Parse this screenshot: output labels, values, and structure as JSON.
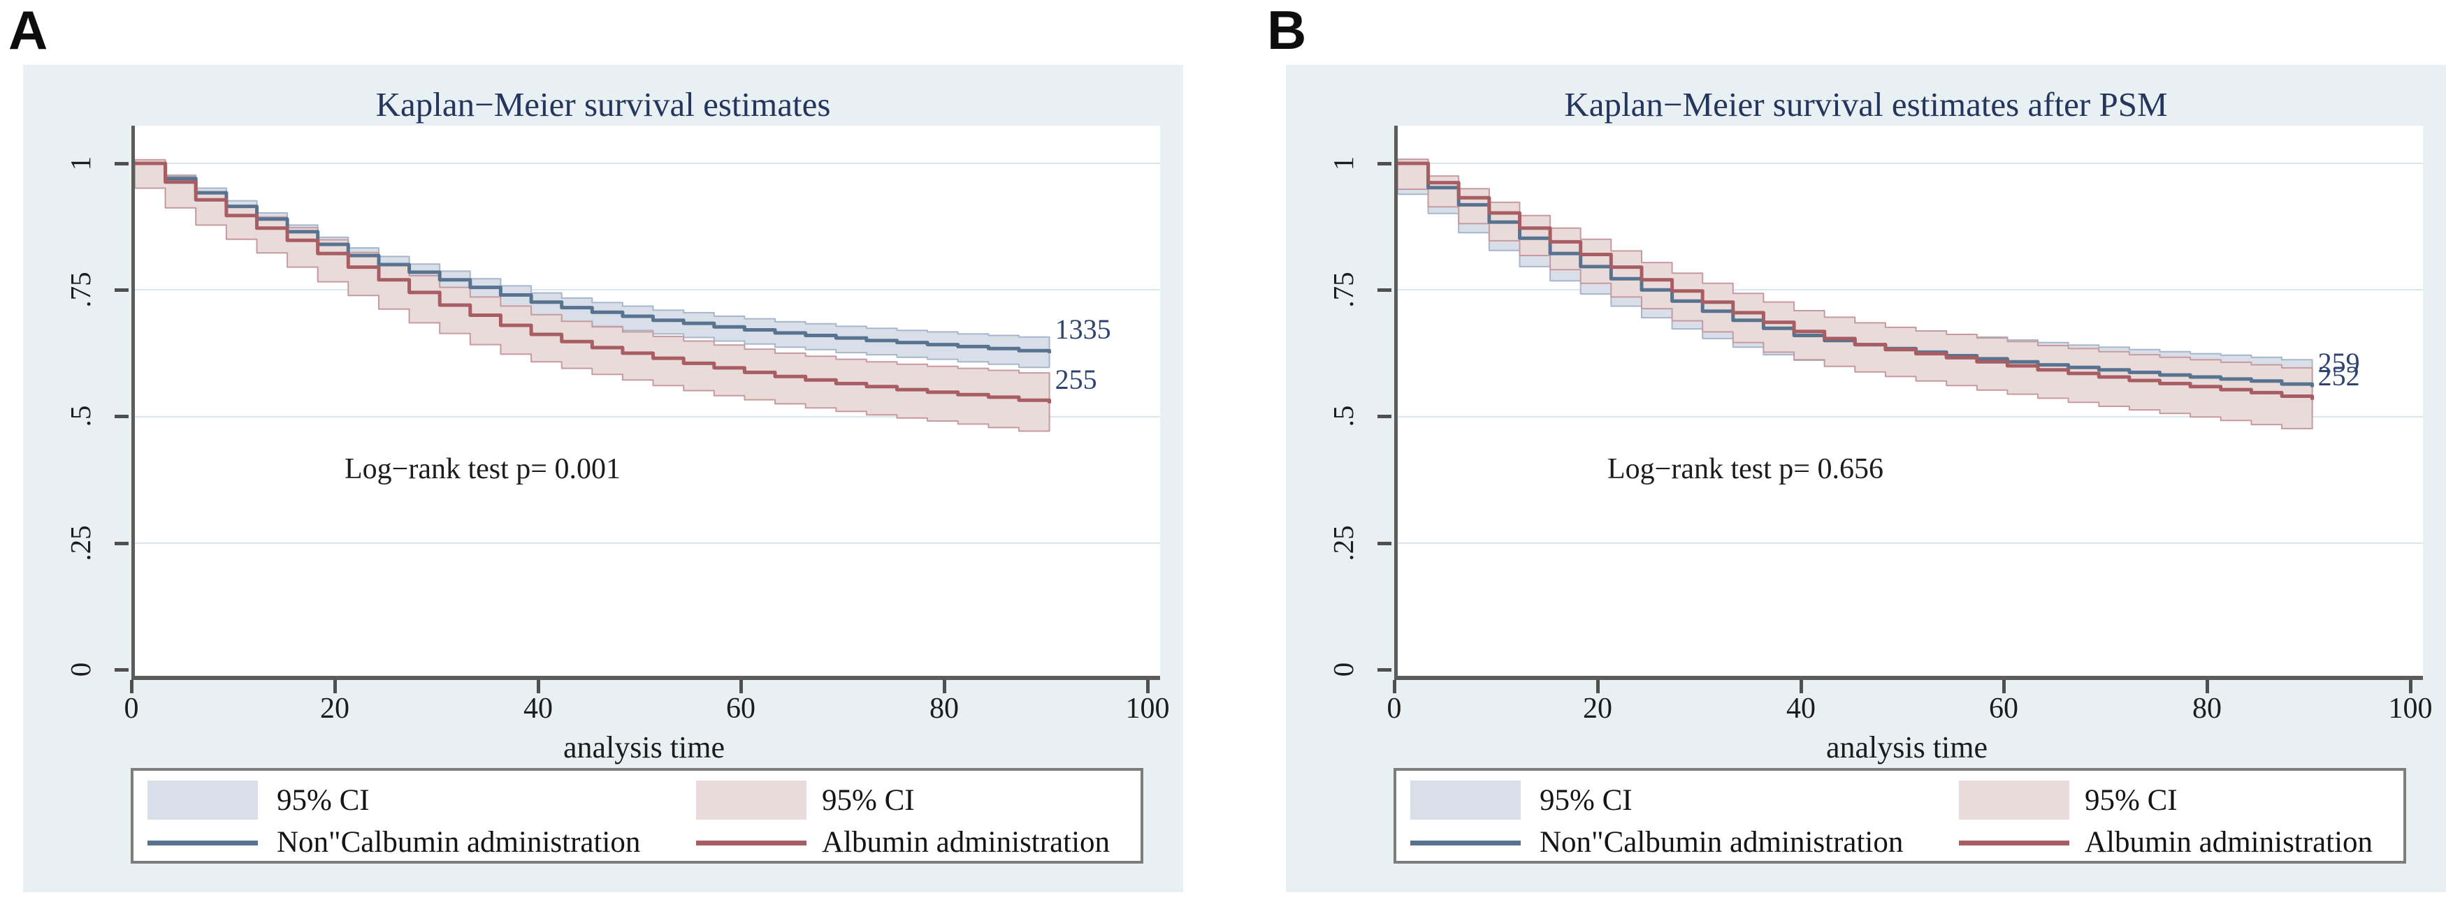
{
  "panels": [
    {
      "label": "A",
      "title": "Kaplan−Meier survival estimates",
      "annotation": "Log−rank test p= 0.001",
      "xlabel": "analysis time",
      "x_ticks": [
        "0",
        "20",
        "40",
        "60",
        "80",
        "100"
      ],
      "y_ticks": [
        "1",
        ".75",
        ".5",
        ".25",
        "0"
      ],
      "legend": {
        "ci_blue": "95% CI",
        "ci_red": "95% CI",
        "series_blue": "Non\"Calbumin administration",
        "series_red": "Albumin administration"
      }
    },
    {
      "label": "B",
      "title": "Kaplan−Meier survival estimates after PSM",
      "annotation": "Log−rank test p= 0.656",
      "xlabel": "analysis time",
      "x_ticks": [
        "0",
        "20",
        "40",
        "60",
        "80",
        "100"
      ],
      "y_ticks": [
        "1",
        ".75",
        ".5",
        ".25",
        "0"
      ],
      "legend": {
        "ci_blue": "95% CI",
        "ci_red": "95% CI",
        "series_blue": "Non\"Calbumin administration",
        "series_red": "Albumin administration"
      }
    }
  ],
  "colors": {
    "panel_background": "#e8f0f4",
    "plot_background": "#ffffff",
    "gridline": "#d9e7ef",
    "axis": "#5c5c5c",
    "title_navy": "#24355e",
    "blue_line": "#57738f",
    "blue_ci_fill": "#d9dfe9",
    "red_line": "#a85d63",
    "red_ci_fill": "#eadbdb",
    "end_label_navy": "#2e4372"
  },
  "chart_data": [
    {
      "panel": "A",
      "type": "line",
      "subtype": "kaplan-meier-step",
      "title": "Kaplan−Meier survival estimates",
      "xlabel": "analysis time",
      "ylabel": "",
      "xlim": [
        0,
        100
      ],
      "ylim": [
        0,
        1
      ],
      "grid": true,
      "legend_position": "bottom",
      "annotation": "Log−rank test p= 0.001",
      "x": [
        0,
        3,
        6,
        9,
        12,
        15,
        18,
        21,
        24,
        27,
        30,
        33,
        36,
        39,
        42,
        45,
        48,
        51,
        54,
        57,
        60,
        63,
        66,
        69,
        72,
        75,
        78,
        81,
        84,
        87,
        90
      ],
      "series": [
        {
          "name": "Non\"Calbumin administration",
          "color": "#57738f",
          "ci_color": "#d9dfe9",
          "ci_edge": "#a8b6ca",
          "end_label": "1335",
          "values": [
            1.0,
            0.97,
            0.942,
            0.915,
            0.89,
            0.865,
            0.84,
            0.818,
            0.8,
            0.785,
            0.77,
            0.755,
            0.74,
            0.726,
            0.715,
            0.706,
            0.698,
            0.69,
            0.684,
            0.677,
            0.671,
            0.665,
            0.66,
            0.655,
            0.65,
            0.646,
            0.642,
            0.638,
            0.634,
            0.63,
            0.625
          ],
          "ci_halfwidth": [
            0.004,
            0.007,
            0.009,
            0.011,
            0.012,
            0.013,
            0.014,
            0.015,
            0.016,
            0.016,
            0.017,
            0.017,
            0.018,
            0.018,
            0.019,
            0.019,
            0.02,
            0.02,
            0.021,
            0.021,
            0.022,
            0.022,
            0.023,
            0.023,
            0.024,
            0.024,
            0.025,
            0.025,
            0.026,
            0.027,
            0.028
          ]
        },
        {
          "name": "Albumin administration",
          "color": "#a85d63",
          "ci_color": "#eadbdb",
          "ci_edge": "#c79aa0",
          "end_label": "255",
          "values": [
            1.0,
            0.963,
            0.928,
            0.897,
            0.872,
            0.848,
            0.822,
            0.795,
            0.77,
            0.745,
            0.72,
            0.7,
            0.68,
            0.662,
            0.648,
            0.636,
            0.625,
            0.615,
            0.605,
            0.596,
            0.587,
            0.579,
            0.572,
            0.565,
            0.559,
            0.553,
            0.548,
            0.543,
            0.538,
            0.532,
            0.526
          ],
          "ci_halfwidth": [
            0.007,
            0.012,
            0.016,
            0.019,
            0.022,
            0.025,
            0.027,
            0.029,
            0.031,
            0.033,
            0.035,
            0.036,
            0.038,
            0.039,
            0.04,
            0.041,
            0.042,
            0.043,
            0.044,
            0.045,
            0.046,
            0.046,
            0.047,
            0.048,
            0.049,
            0.05,
            0.051,
            0.052,
            0.053,
            0.054,
            0.055
          ]
        }
      ]
    },
    {
      "panel": "B",
      "type": "line",
      "subtype": "kaplan-meier-step",
      "title": "Kaplan−Meier survival estimates after PSM",
      "xlabel": "analysis time",
      "ylabel": "",
      "xlim": [
        0,
        100
      ],
      "ylim": [
        0,
        1
      ],
      "grid": true,
      "legend_position": "bottom",
      "annotation": "Log−rank test p= 0.656",
      "x": [
        0,
        3,
        6,
        9,
        12,
        15,
        18,
        21,
        24,
        27,
        30,
        33,
        36,
        39,
        42,
        45,
        48,
        51,
        54,
        57,
        60,
        63,
        66,
        69,
        72,
        75,
        78,
        81,
        84,
        87,
        90
      ],
      "series": [
        {
          "name": "Non\"Calbumin administration",
          "color": "#57738f",
          "ci_color": "#d9dfe9",
          "ci_edge": "#a8b6ca",
          "end_label": "259",
          "values": [
            1.0,
            0.952,
            0.918,
            0.884,
            0.852,
            0.822,
            0.796,
            0.772,
            0.75,
            0.728,
            0.708,
            0.69,
            0.674,
            0.66,
            0.65,
            0.642,
            0.634,
            0.627,
            0.62,
            0.614,
            0.608,
            0.602,
            0.597,
            0.592,
            0.587,
            0.582,
            0.578,
            0.574,
            0.57,
            0.564,
            0.558
          ],
          "ci_halfwidth": [
            0.008,
            0.013,
            0.017,
            0.021,
            0.024,
            0.026,
            0.028,
            0.03,
            0.032,
            0.033,
            0.035,
            0.036,
            0.037,
            0.038,
            0.039,
            0.04,
            0.041,
            0.042,
            0.042,
            0.043,
            0.043,
            0.044,
            0.044,
            0.045,
            0.045,
            0.046,
            0.046,
            0.047,
            0.047,
            0.048,
            0.049
          ]
        },
        {
          "name": "Albumin administration",
          "color": "#a85d63",
          "ci_color": "#eadbdb",
          "ci_edge": "#c79aa0",
          "end_label": "252",
          "values": [
            1.0,
            0.962,
            0.932,
            0.902,
            0.872,
            0.845,
            0.82,
            0.795,
            0.77,
            0.748,
            0.726,
            0.705,
            0.686,
            0.668,
            0.654,
            0.642,
            0.632,
            0.624,
            0.616,
            0.608,
            0.6,
            0.592,
            0.585,
            0.578,
            0.571,
            0.565,
            0.559,
            0.553,
            0.547,
            0.54,
            0.533
          ],
          "ci_halfwidth": [
            0.008,
            0.013,
            0.018,
            0.021,
            0.025,
            0.027,
            0.03,
            0.032,
            0.034,
            0.035,
            0.037,
            0.038,
            0.04,
            0.041,
            0.042,
            0.043,
            0.044,
            0.045,
            0.046,
            0.047,
            0.048,
            0.048,
            0.049,
            0.05,
            0.051,
            0.052,
            0.053,
            0.054,
            0.055,
            0.056,
            0.057
          ]
        }
      ]
    }
  ]
}
